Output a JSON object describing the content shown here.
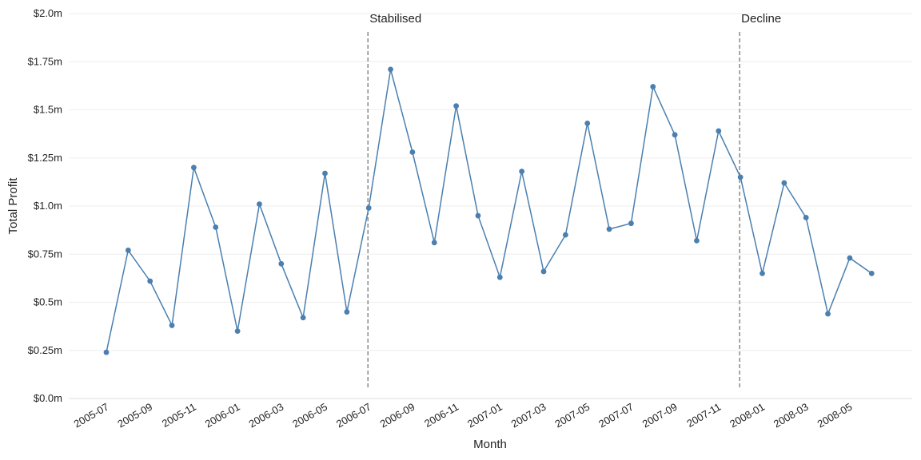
{
  "chart_data": {
    "type": "line",
    "xlabel": "Month",
    "ylabel": "Total Profit",
    "ylim": [
      0,
      2.0
    ],
    "grid": true,
    "line_color": "#4a7fb0",
    "x": [
      "2005-07",
      "2005-08",
      "2005-09",
      "2005-10",
      "2005-11",
      "2005-12",
      "2006-01",
      "2006-02",
      "2006-03",
      "2006-04",
      "2006-05",
      "2006-06",
      "2006-07",
      "2006-08",
      "2006-09",
      "2006-10",
      "2006-11",
      "2006-12",
      "2007-01",
      "2007-02",
      "2007-03",
      "2007-04",
      "2007-05",
      "2007-06",
      "2007-07",
      "2007-08",
      "2007-09",
      "2007-10",
      "2007-11",
      "2007-12",
      "2008-01",
      "2008-02",
      "2008-03",
      "2008-04",
      "2008-05",
      "2008-06"
    ],
    "values": [
      0.24,
      0.77,
      0.61,
      0.38,
      1.2,
      0.89,
      0.35,
      1.01,
      0.7,
      0.42,
      1.17,
      0.45,
      0.99,
      1.71,
      1.28,
      0.81,
      1.52,
      0.95,
      0.63,
      1.18,
      0.66,
      0.85,
      1.43,
      0.88,
      0.91,
      1.62,
      1.37,
      0.82,
      1.39,
      1.15,
      0.65,
      1.12,
      0.94,
      0.44,
      0.73,
      0.65
    ],
    "x_ticks": [
      "2005-07",
      "2005-09",
      "2005-11",
      "2006-01",
      "2006-03",
      "2006-05",
      "2006-07",
      "2006-09",
      "2006-11",
      "2007-01",
      "2007-03",
      "2007-05",
      "2007-07",
      "2007-09",
      "2007-11",
      "2008-01",
      "2008-03",
      "2008-05"
    ],
    "y_ticks": [
      {
        "value": 0,
        "label": "$0.0m"
      },
      {
        "value": 0.25,
        "label": "$0.25m"
      },
      {
        "value": 0.5,
        "label": "$0.5m"
      },
      {
        "value": 0.75,
        "label": "$0.75m"
      },
      {
        "value": 1.0,
        "label": "$1.0m"
      },
      {
        "value": 1.25,
        "label": "$1.25m"
      },
      {
        "value": 1.5,
        "label": "$1.5m"
      },
      {
        "value": 1.75,
        "label": "$1.75m"
      },
      {
        "value": 2.0,
        "label": "$2.0m"
      }
    ],
    "annotations": [
      {
        "x": "2006-07",
        "label": "Stabilised"
      },
      {
        "x": "2007-12",
        "label": "Decline"
      }
    ]
  }
}
